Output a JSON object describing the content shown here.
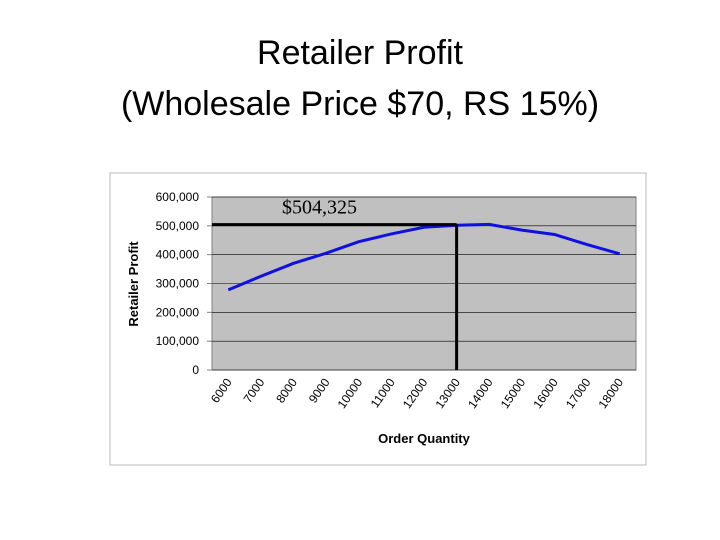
{
  "chart_data": {
    "type": "line",
    "title": "Retailer Profit",
    "subtitle": "(Wholesale Price $70, RS 15%)",
    "x_label": "Order Quantity",
    "y_label": "Retailer Profit",
    "categories": [
      "6000",
      "7000",
      "8000",
      "9000",
      "10000",
      "11000",
      "12000",
      "13000",
      "14000",
      "15000",
      "16000",
      "17000",
      "18000"
    ],
    "series": [
      {
        "name": "Retailer Profit",
        "color": "#1010e0",
        "values": [
          278000,
          325000,
          370000,
          405000,
          445000,
          472000,
          495000,
          502000,
          505000,
          485000,
          470000,
          435000,
          403000
        ]
      }
    ],
    "ylim": [
      0,
      600000
    ],
    "yticks": [
      0,
      {
        "value": 100000,
        "label": "100,000"
      },
      {
        "value": 200000,
        "label": "200,000"
      },
      {
        "value": 300000,
        "label": "300,000"
      },
      {
        "value": 400000,
        "label": "400,000"
      },
      {
        "value": 500000,
        "label": "500,000"
      },
      {
        "value": 600000,
        "label": "600,000"
      }
    ],
    "grid": true,
    "annotation": {
      "value": 504325,
      "label": "$504,325"
    }
  }
}
